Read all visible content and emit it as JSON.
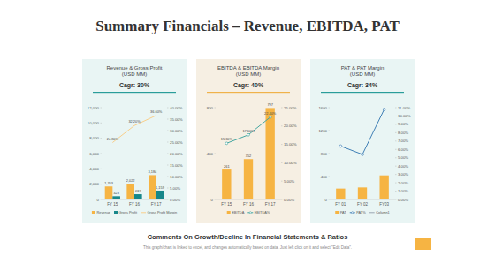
{
  "title": "Summary Financials – Revenue, EBITDA, PAT",
  "comments": "Comments On Growth/Decline In Financial Statements & Ratios",
  "note": "This graph/chart is linked to excel, and changes automatically based on data. Just left click on it and select \"Edit Data\".",
  "chart_data": [
    {
      "type": "bar",
      "title": "Revenue & Gross Profit (USD MM)",
      "subtitle": "Cagr: 30%",
      "categories": [
        "FY 15",
        "FY 16",
        "FY 17"
      ],
      "series": [
        {
          "name": "Revenue",
          "type": "bar",
          "color": "#f6b443",
          "values": [
            1703,
            2022,
            3184
          ],
          "value_labels": [
            "1,703",
            "2,022",
            "3,184"
          ]
        },
        {
          "name": "Gross Profit",
          "type": "bar",
          "color": "#17878a",
          "values": [
            423,
            687,
            1159
          ],
          "value_labels": [
            "423",
            "687",
            "1,159"
          ]
        },
        {
          "name": "Gross Profit Margin",
          "type": "line",
          "axis": "y2",
          "color": "#f9cf8a",
          "marker": "none",
          "values": [
            24.8,
            32.2,
            36.6
          ],
          "value_labels": [
            "24.80%",
            "32.20%",
            "36.60%"
          ]
        }
      ],
      "ylim": [
        0,
        12000
      ],
      "yticks": [
        0,
        {
          "value": 2000,
          "label": "2,000"
        },
        {
          "value": 4000,
          "label": "4,000"
        },
        {
          "value": 6000,
          "label": "6,000"
        },
        {
          "value": 8000,
          "label": "8,000"
        },
        {
          "value": 10000,
          "label": "10,000"
        },
        {
          "value": 12000,
          "label": "12,000"
        }
      ],
      "y2lim": [
        0,
        40
      ],
      "y2ticks": [
        {
          "value": 0,
          "label": "0.00%"
        },
        {
          "value": 5,
          "label": "5.00%"
        },
        {
          "value": 10,
          "label": "10.00%"
        },
        {
          "value": 15,
          "label": "15.00%"
        },
        {
          "value": 20,
          "label": "20.00%"
        },
        {
          "value": 25,
          "label": "25.00%"
        },
        {
          "value": 30,
          "label": "30.00%"
        },
        {
          "value": 35,
          "label": "35.00%"
        },
        {
          "value": 40,
          "label": "40.00%"
        }
      ],
      "grid": false,
      "data_labels": true,
      "legend": "bottom"
    },
    {
      "type": "bar",
      "title": "EBITDA & EBITDA Margin (USD MM)",
      "subtitle": "Cagr: 40%",
      "categories": [
        "FY 15",
        "FY 16",
        "FY 17"
      ],
      "series": [
        {
          "name": "EBITDA",
          "type": "bar",
          "color": "#f6b443",
          "values": [
            261,
            352,
            797
          ]
        },
        {
          "name": "EBITDA%",
          "type": "line",
          "axis": "y2",
          "color": "#45a6a0",
          "marker": "circle",
          "values": [
            15.3,
            17.6,
            22.4
          ],
          "value_labels": [
            "15.30%",
            "17.60%",
            "22.40%"
          ]
        }
      ],
      "ylim": [
        0,
        800
      ],
      "yticks": [
        0,
        400,
        800
      ],
      "y2lim": [
        0,
        25
      ],
      "y2ticks": [
        {
          "value": 0,
          "label": "0.00%"
        },
        {
          "value": 5,
          "label": "5.00%"
        },
        {
          "value": 10,
          "label": "10.00%"
        },
        {
          "value": 15,
          "label": "15.00%"
        },
        {
          "value": 20,
          "label": "20.00%"
        },
        {
          "value": 25,
          "label": "25.00%"
        }
      ],
      "grid": false,
      "data_labels": true,
      "legend": "bottom"
    },
    {
      "type": "bar",
      "title": "PAT & PAT Margin (USD MM)",
      "subtitle": "Cagr: 34%",
      "categories": [
        "FY 01",
        "FY 02",
        "FY03"
      ],
      "series": [
        {
          "name": "PAT",
          "type": "bar",
          "color": "#f6b443",
          "values": [
            190,
            210,
            420
          ]
        },
        {
          "name": "PAT%",
          "type": "line",
          "axis": "y2",
          "color": "#3f7fb5",
          "marker": "circle",
          "values": [
            6.4,
            5.4,
            10.8
          ]
        },
        {
          "name": "Column1",
          "type": "line",
          "axis": "y2",
          "color": "#9aa6b2",
          "marker": "none",
          "values": [
            null,
            null,
            null
          ]
        }
      ],
      "ylim": [
        0,
        1600
      ],
      "yticks": [
        0,
        400,
        800,
        1200,
        1600
      ],
      "y2lim": [
        0,
        11
      ],
      "y2ticks": [
        {
          "value": 0,
          "label": "0.00%"
        },
        {
          "value": 1,
          "label": "1.00%"
        },
        {
          "value": 2,
          "label": "2.00%"
        },
        {
          "value": 3,
          "label": "3.00%"
        },
        {
          "value": 4,
          "label": "4.00%"
        },
        {
          "value": 5,
          "label": "5.00%"
        },
        {
          "value": 6,
          "label": "6.00%"
        },
        {
          "value": 7,
          "label": "7.00%"
        },
        {
          "value": 8,
          "label": "8.00%"
        },
        {
          "value": 9,
          "label": "9.00%"
        },
        {
          "value": 10,
          "label": "10.00%"
        },
        {
          "value": 11,
          "label": "11.00%"
        }
      ],
      "grid": false,
      "data_labels": false,
      "legend": "bottom"
    }
  ]
}
